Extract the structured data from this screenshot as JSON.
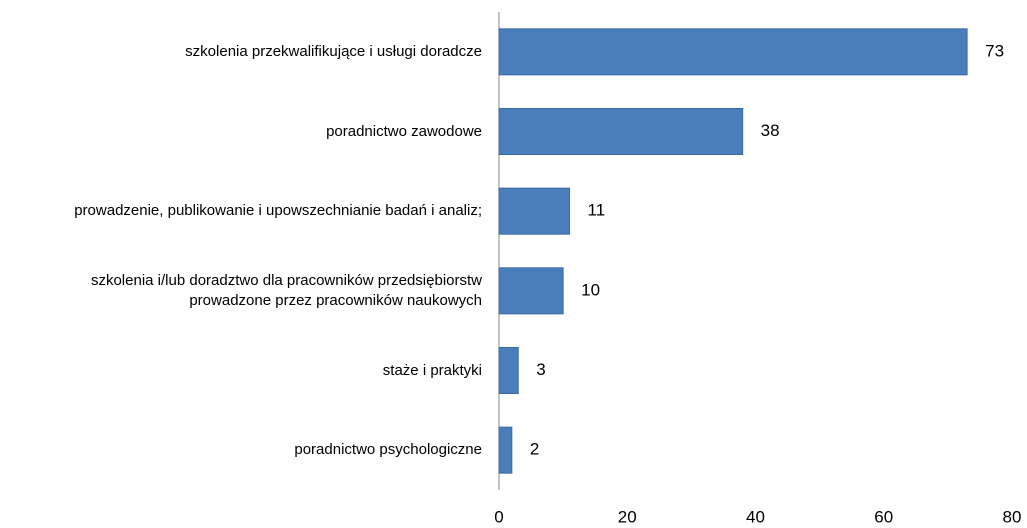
{
  "chart_data": {
    "type": "bar",
    "orientation": "horizontal",
    "categories": [
      "szkolenia przekwalifikujące i usługi doradcze",
      "poradnictwo zawodowe",
      "prowadzenie, publikowanie i upowszechnianie badań i analiz;",
      "szkolenia i/lub doradztwo dla pracowników przedsiębiorstw prowadzone przez pracowników naukowych",
      "staże i praktyki",
      "poradnictwo psychologiczne"
    ],
    "values": [
      73,
      38,
      11,
      10,
      3,
      2
    ],
    "color": "#4a7ebb",
    "xlim": [
      0,
      80
    ],
    "xticks": [
      0,
      20,
      40,
      60,
      80
    ],
    "grid": false
  }
}
